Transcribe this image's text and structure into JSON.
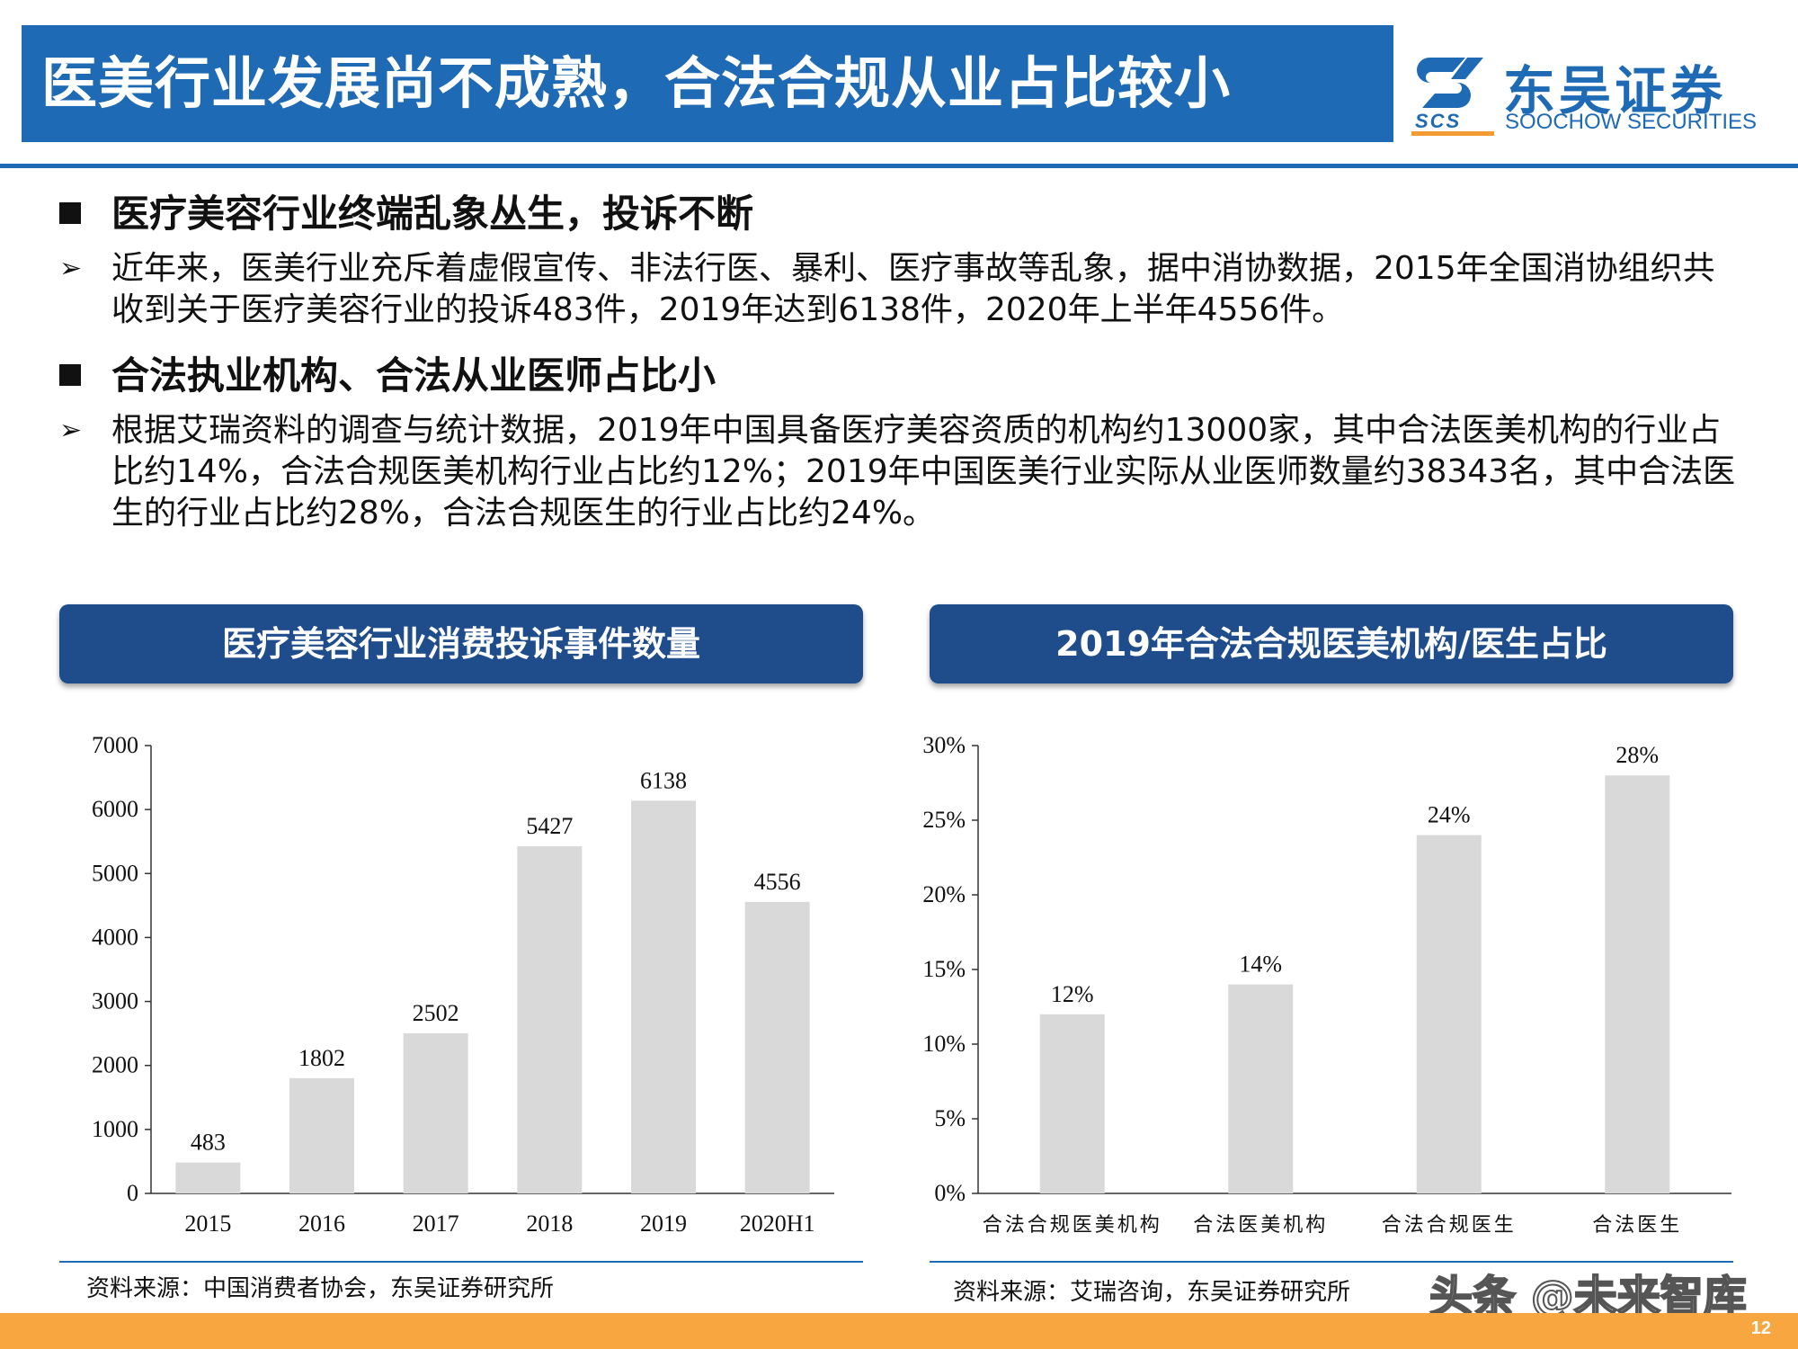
{
  "header": {
    "title": "医美行业发展尚不成熟，合法合规从业占比较小"
  },
  "logo": {
    "name_cn": "东吴证券",
    "name_en": "SOOCHOW SECURITIES",
    "abbr": "SCS"
  },
  "sections": [
    {
      "heading": "医疗美容行业终端乱象丛生，投诉不断",
      "bullet": "近年来，医美行业充斥着虚假宣传、非法行医、暴利、医疗事故等乱象，据中消协数据，2015年全国消协组织共收到关于医疗美容行业的投诉483件，2019年达到6138件，2020年上半年4556件。"
    },
    {
      "heading": "合法执业机构、合法从业医师占比小",
      "bullet": "根据艾瑞资料的调查与统计数据，2019年中国具备医疗美容资质的机构约13000家，其中合法医美机构的行业占比约14%，合法合规医美机构行业占比约12%；2019年中国医美行业实际从业医师数量约38343名，其中合法医生的行业占比约28%，合法合规医生的行业占比约24%。"
    }
  ],
  "panels": [
    {
      "title": "医疗美容行业消费投诉事件数量",
      "source": "资料来源：中国消费者协会，东吴证券研究所"
    },
    {
      "title": "2019年合法合规医美机构/医生占比",
      "source": "资料来源：艾瑞咨询，东吴证券研究所"
    }
  ],
  "chart_data": [
    {
      "type": "bar",
      "categories": [
        "2015",
        "2016",
        "2017",
        "2018",
        "2019",
        "2020H1"
      ],
      "values": [
        483,
        1802,
        2502,
        5427,
        6138,
        4556
      ],
      "data_labels": [
        "483",
        "1802",
        "2502",
        "5427",
        "6138",
        "4556"
      ],
      "ylim": [
        0,
        7000
      ],
      "yticks": [
        0,
        1000,
        2000,
        3000,
        4000,
        5000,
        6000,
        7000
      ],
      "ytick_labels": [
        "0",
        "1000",
        "2000",
        "3000",
        "4000",
        "5000",
        "6000",
        "7000"
      ],
      "bar_color": "#d9d9d9",
      "grid": false
    },
    {
      "type": "bar",
      "categories": [
        "合法合规医美机构",
        "合法医美机构",
        "合法合规医生",
        "合法医生"
      ],
      "values": [
        12,
        14,
        24,
        28
      ],
      "data_labels": [
        "12%",
        "14%",
        "24%",
        "28%"
      ],
      "ylim": [
        0,
        30
      ],
      "yticks": [
        0,
        5,
        10,
        15,
        20,
        25,
        30
      ],
      "ytick_labels": [
        "0%",
        "5%",
        "10%",
        "15%",
        "20%",
        "25%",
        "30%"
      ],
      "bar_color": "#d9d9d9",
      "grid": false
    }
  ],
  "watermark": "头条 @未来智库",
  "page_number": "12",
  "colors": {
    "brand_blue": "#1e6ab5",
    "panel_blue": "#1f4d8c",
    "footer_orange": "#f7a640"
  }
}
